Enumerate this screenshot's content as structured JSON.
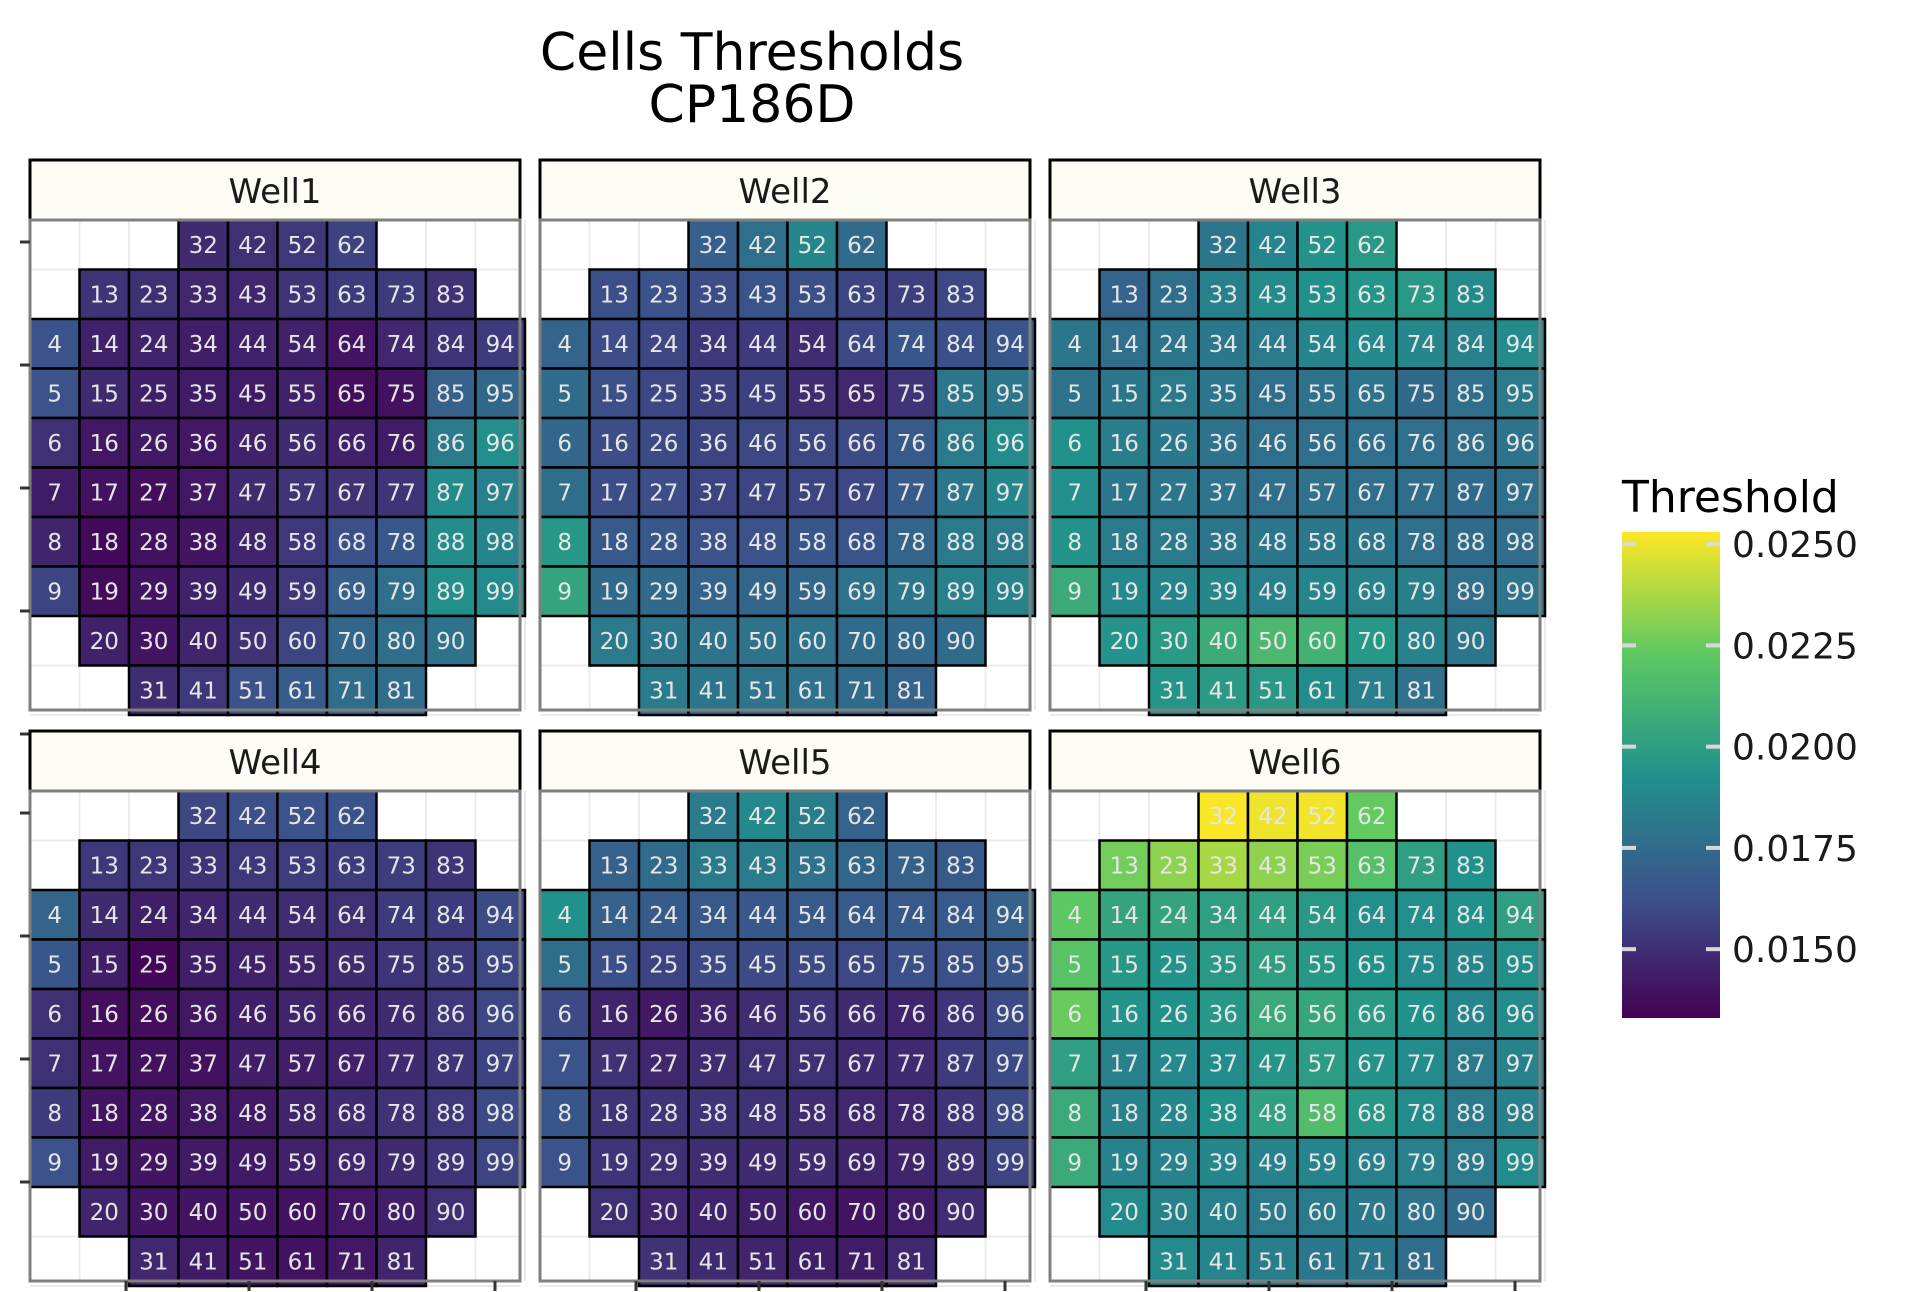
{
  "chart_data": {
    "type": "heatmap",
    "title": "Cells Thresholds",
    "subtitle": "CP186D",
    "panels": [
      {
        "name": "Well1",
        "values": [
          [
            null,
            null,
            null,
            0.0148,
            0.015,
            0.0153,
            0.0157,
            null,
            null,
            null
          ],
          [
            null,
            0.0152,
            0.015,
            0.0147,
            0.0147,
            0.0152,
            0.0154,
            0.0154,
            0.0151,
            null
          ],
          [
            0.0164,
            0.0145,
            0.0146,
            0.0144,
            0.0145,
            0.0145,
            0.014,
            0.0147,
            0.0152,
            0.0154
          ],
          [
            0.0163,
            0.0148,
            0.0144,
            0.0143,
            0.0143,
            0.0145,
            0.0138,
            0.0139,
            0.017,
            0.0173
          ],
          [
            0.015,
            0.0141,
            0.0142,
            0.0141,
            0.0145,
            0.0148,
            0.0145,
            0.0143,
            0.0182,
            0.0192
          ],
          [
            0.0143,
            0.0139,
            0.0138,
            0.0141,
            0.0148,
            0.0152,
            0.0151,
            0.0152,
            0.019,
            0.0185
          ],
          [
            0.0146,
            0.0136,
            0.0139,
            0.014,
            0.0146,
            0.0153,
            0.0162,
            0.0166,
            0.0191,
            0.0187
          ],
          [
            0.0158,
            0.0137,
            0.014,
            0.0145,
            0.0148,
            0.0153,
            0.0169,
            0.0177,
            0.0192,
            0.019
          ],
          [
            null,
            0.0145,
            0.014,
            0.0146,
            0.0151,
            0.0158,
            0.0173,
            0.0176,
            0.0178,
            null
          ],
          [
            null,
            null,
            0.0149,
            0.0153,
            0.0163,
            0.0168,
            0.0176,
            0.0176,
            null,
            null
          ]
        ]
      },
      {
        "name": "Well2",
        "values": [
          [
            null,
            null,
            null,
            0.0169,
            0.0177,
            0.0188,
            0.0175,
            null,
            null,
            null
          ],
          [
            null,
            0.0162,
            0.0163,
            0.0161,
            0.0164,
            0.0162,
            0.0158,
            0.0156,
            0.0159,
            null
          ],
          [
            0.0171,
            0.0161,
            0.0159,
            0.0153,
            0.0154,
            0.0149,
            0.0159,
            0.0165,
            0.0162,
            0.0165
          ],
          [
            0.0175,
            0.0162,
            0.0159,
            0.0156,
            0.0156,
            0.0149,
            0.0147,
            0.0152,
            0.018,
            0.018
          ],
          [
            0.0173,
            0.0161,
            0.016,
            0.0158,
            0.0159,
            0.0159,
            0.016,
            0.0167,
            0.0182,
            0.019
          ],
          [
            0.0176,
            0.0161,
            0.0161,
            0.0158,
            0.0158,
            0.0158,
            0.0159,
            0.0168,
            0.018,
            0.0188
          ],
          [
            0.0196,
            0.0167,
            0.0166,
            0.0163,
            0.0163,
            0.0165,
            0.0164,
            0.0172,
            0.0182,
            0.0182
          ],
          [
            0.0203,
            0.0174,
            0.0174,
            0.0171,
            0.0172,
            0.0173,
            0.0178,
            0.018,
            0.0185,
            0.0186
          ],
          [
            null,
            0.0182,
            0.018,
            0.0178,
            0.0178,
            0.0178,
            0.0175,
            0.0174,
            0.0175,
            null
          ],
          [
            null,
            null,
            0.0183,
            0.018,
            0.0179,
            0.0178,
            0.0175,
            0.0171,
            null,
            null
          ]
        ]
      },
      {
        "name": "Well3",
        "values": [
          [
            null,
            null,
            null,
            0.018,
            0.0187,
            0.0194,
            0.0197,
            null,
            null,
            null
          ],
          [
            null,
            0.0171,
            0.0177,
            0.0185,
            0.019,
            0.0193,
            0.0195,
            0.0197,
            0.019,
            null
          ],
          [
            0.018,
            0.0177,
            0.018,
            0.0181,
            0.0182,
            0.0187,
            0.0189,
            0.0188,
            0.0186,
            0.019
          ],
          [
            0.0178,
            0.018,
            0.0182,
            0.018,
            0.0177,
            0.0178,
            0.0179,
            0.0174,
            0.0177,
            0.0182
          ],
          [
            0.0193,
            0.0184,
            0.0181,
            0.0178,
            0.0177,
            0.0177,
            0.0177,
            0.0177,
            0.0177,
            0.0178
          ],
          [
            0.0192,
            0.018,
            0.018,
            0.0179,
            0.0177,
            0.0178,
            0.0177,
            0.0176,
            0.0175,
            0.0177
          ],
          [
            0.0194,
            0.0183,
            0.0182,
            0.018,
            0.018,
            0.0181,
            0.018,
            0.0177,
            0.0175,
            0.0176
          ],
          [
            0.0206,
            0.0189,
            0.0187,
            0.0188,
            0.0185,
            0.0187,
            0.0186,
            0.0184,
            0.0177,
            0.0179
          ],
          [
            null,
            0.0194,
            0.0198,
            0.0207,
            0.0214,
            0.021,
            0.0196,
            0.0186,
            0.018,
            null
          ],
          [
            null,
            null,
            0.0195,
            0.0198,
            0.0197,
            0.0191,
            0.0185,
            0.0178,
            null,
            null
          ]
        ]
      },
      {
        "name": "Well4",
        "values": [
          [
            null,
            null,
            null,
            0.0159,
            0.0162,
            0.0163,
            0.0164,
            null,
            null,
            null
          ],
          [
            null,
            0.0153,
            0.0153,
            0.0152,
            0.0153,
            0.0155,
            0.0155,
            0.0155,
            0.0152,
            null
          ],
          [
            0.0172,
            0.0148,
            0.0144,
            0.0146,
            0.0148,
            0.0149,
            0.015,
            0.0154,
            0.0154,
            0.016
          ],
          [
            0.0165,
            0.0144,
            0.0135,
            0.0144,
            0.0145,
            0.0146,
            0.0148,
            0.0152,
            0.0154,
            0.0159
          ],
          [
            0.015,
            0.0138,
            0.0138,
            0.0141,
            0.0144,
            0.0146,
            0.0146,
            0.0148,
            0.0153,
            0.0159
          ],
          [
            0.015,
            0.014,
            0.0139,
            0.0139,
            0.0144,
            0.0144,
            0.0145,
            0.0148,
            0.0152,
            0.0157
          ],
          [
            0.0154,
            0.014,
            0.014,
            0.0141,
            0.0142,
            0.0146,
            0.0148,
            0.0151,
            0.0153,
            0.016
          ],
          [
            0.0163,
            0.0143,
            0.014,
            0.0142,
            0.0142,
            0.0145,
            0.0147,
            0.0148,
            0.0152,
            0.0158
          ],
          [
            null,
            0.0146,
            0.014,
            0.014,
            0.014,
            0.0139,
            0.0141,
            0.0144,
            0.015,
            null
          ],
          [
            null,
            null,
            0.0147,
            0.0143,
            0.014,
            0.0139,
            0.0141,
            0.0146,
            null,
            null
          ]
        ]
      },
      {
        "name": "Well5",
        "values": [
          [
            null,
            null,
            null,
            0.0183,
            0.0189,
            0.0184,
            0.0171,
            null,
            null,
            null
          ],
          [
            null,
            0.017,
            0.0175,
            0.0182,
            0.0183,
            0.0178,
            0.0173,
            0.017,
            0.0167,
            null
          ],
          [
            0.0193,
            0.017,
            0.0168,
            0.0167,
            0.0166,
            0.0167,
            0.0167,
            0.0167,
            0.0167,
            0.017
          ],
          [
            0.0176,
            0.0162,
            0.0158,
            0.016,
            0.016,
            0.016,
            0.0159,
            0.0162,
            0.0162,
            0.0165
          ],
          [
            0.016,
            0.0146,
            0.0142,
            0.0146,
            0.0149,
            0.0152,
            0.0148,
            0.0146,
            0.0152,
            0.016
          ],
          [
            0.0164,
            0.0151,
            0.0147,
            0.0149,
            0.015,
            0.015,
            0.0148,
            0.0148,
            0.0154,
            0.016
          ],
          [
            0.0165,
            0.0152,
            0.0152,
            0.0152,
            0.0151,
            0.0149,
            0.0147,
            0.0147,
            0.0152,
            0.016
          ],
          [
            0.0164,
            0.0152,
            0.015,
            0.0149,
            0.0148,
            0.0148,
            0.0146,
            0.0146,
            0.0151,
            0.0158
          ],
          [
            null,
            0.015,
            0.0147,
            0.0146,
            0.0144,
            0.0141,
            0.014,
            0.0143,
            0.0149,
            null
          ],
          [
            null,
            null,
            0.0151,
            0.0148,
            0.0146,
            0.0144,
            0.0143,
            0.0147,
            null,
            null
          ]
        ]
      },
      {
        "name": "Well6",
        "values": [
          [
            null,
            null,
            null,
            0.0252,
            0.025,
            0.0251,
            0.0224,
            null,
            null,
            null
          ],
          [
            null,
            0.0227,
            0.0232,
            0.0237,
            0.0232,
            0.0228,
            0.0218,
            0.02,
            0.0193,
            null
          ],
          [
            0.0222,
            0.0203,
            0.0203,
            0.02,
            0.02,
            0.0197,
            0.0192,
            0.0192,
            0.0193,
            0.02
          ],
          [
            0.022,
            0.0196,
            0.0194,
            0.0197,
            0.02,
            0.0196,
            0.0193,
            0.019,
            0.0188,
            0.0192
          ],
          [
            0.0225,
            0.0194,
            0.0193,
            0.0196,
            0.0206,
            0.0204,
            0.0198,
            0.0193,
            0.0187,
            0.019
          ],
          [
            0.02,
            0.0186,
            0.0189,
            0.0191,
            0.0195,
            0.0199,
            0.0194,
            0.019,
            0.0182,
            0.0186
          ],
          [
            0.0206,
            0.0186,
            0.0188,
            0.0193,
            0.0201,
            0.0216,
            0.0196,
            0.019,
            0.0182,
            0.0185
          ],
          [
            0.0206,
            0.0186,
            0.0186,
            0.0188,
            0.0186,
            0.0187,
            0.0185,
            0.0185,
            0.0182,
            0.019
          ],
          [
            null,
            0.019,
            0.0186,
            0.0185,
            0.0182,
            0.0182,
            0.0181,
            0.0178,
            0.0175,
            null
          ],
          [
            null,
            null,
            0.019,
            0.0187,
            0.0184,
            0.0181,
            0.018,
            0.0176,
            null,
            null
          ]
        ]
      }
    ],
    "legend": {
      "title": "Threshold",
      "ticks": [
        0.025,
        0.0225,
        0.02,
        0.0175,
        0.015
      ],
      "tick_labels": [
        "0.0250",
        "0.0225",
        "0.0200",
        "0.0175",
        "0.0150"
      ],
      "range": [
        0.0133,
        0.0253
      ],
      "colormap": "viridis",
      "placement": "right"
    }
  }
}
